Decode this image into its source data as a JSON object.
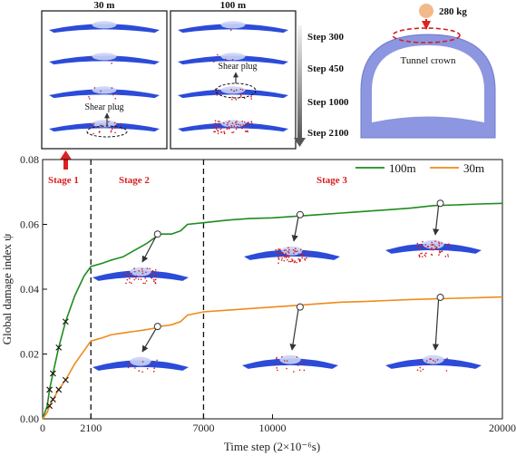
{
  "top_figure": {
    "panel_titles": [
      "30 m",
      "100 m"
    ],
    "steps": [
      "Step 300",
      "Step 450",
      "Step 1000",
      "Step 2100"
    ],
    "shear_plug_label": "Shear plug",
    "mass_label": "280 kg",
    "tunnel_label": "Tunnel crown"
  },
  "chart_data": {
    "type": "line",
    "xlabel": "Time step (2×10⁻⁶s)",
    "ylabel": "Global damage index ψ",
    "xlim": [
      0,
      20000
    ],
    "ylim": [
      0,
      0.08
    ],
    "xticks": [
      0,
      2100,
      7000,
      10000,
      20000
    ],
    "xtick_labels": [
      "0",
      "2100",
      "7000",
      "10000",
      "20000"
    ],
    "yticks": [
      0.0,
      0.02,
      0.04,
      0.06,
      0.08
    ],
    "ytick_labels": [
      "0.00",
      "0.02",
      "0.04",
      "0.06",
      "0.08"
    ],
    "stage_boundaries": [
      2100,
      7000
    ],
    "stages": [
      "Stage 1",
      "Stage 2",
      "Stage 3"
    ],
    "legend_position": "top-right",
    "series": [
      {
        "name": "100m",
        "color": "#1e8c1e",
        "x": [
          0,
          200,
          300,
          450,
          700,
          1000,
          1400,
          1800,
          2100,
          2600,
          3000,
          3500,
          4000,
          4500,
          4900,
          5100,
          5600,
          6000,
          6300,
          7000,
          8000,
          9000,
          10000,
          11000,
          12000,
          13000,
          14000,
          15000,
          16000,
          17000,
          18000,
          19000,
          20000
        ],
        "y": [
          0.0,
          0.004,
          0.009,
          0.014,
          0.022,
          0.03,
          0.038,
          0.044,
          0.047,
          0.048,
          0.049,
          0.05,
          0.052,
          0.054,
          0.056,
          0.057,
          0.057,
          0.058,
          0.06,
          0.0605,
          0.0613,
          0.0618,
          0.062,
          0.0625,
          0.063,
          0.0635,
          0.064,
          0.0645,
          0.065,
          0.0658,
          0.066,
          0.0663,
          0.0665
        ],
        "markers_x": [
          300,
          450,
          700,
          1000
        ]
      },
      {
        "name": "30m",
        "color": "#f08a1c",
        "x": [
          0,
          200,
          300,
          450,
          700,
          1000,
          1400,
          1800,
          2100,
          2600,
          3000,
          3500,
          4000,
          4500,
          4900,
          5100,
          5600,
          6000,
          6300,
          7000,
          8000,
          9000,
          10000,
          11000,
          12000,
          13000,
          14000,
          15000,
          16000,
          17000,
          18000,
          19000,
          20000
        ],
        "y": [
          0.0,
          0.002,
          0.004,
          0.006,
          0.009,
          0.012,
          0.017,
          0.021,
          0.024,
          0.025,
          0.026,
          0.0265,
          0.027,
          0.0275,
          0.028,
          0.0285,
          0.029,
          0.03,
          0.032,
          0.033,
          0.0335,
          0.034,
          0.0345,
          0.035,
          0.0355,
          0.036,
          0.0362,
          0.0365,
          0.0368,
          0.037,
          0.0372,
          0.0374,
          0.0376
        ],
        "markers_x": [
          300,
          450,
          700,
          1000
        ]
      }
    ],
    "callouts": [
      {
        "series": "100m",
        "x": 5000,
        "y": 0.057
      },
      {
        "series": "100m",
        "x": 11200,
        "y": 0.063
      },
      {
        "series": "100m",
        "x": 17300,
        "y": 0.0665
      },
      {
        "series": "30m",
        "x": 5000,
        "y": 0.0285
      },
      {
        "series": "30m",
        "x": 11200,
        "y": 0.0345
      },
      {
        "series": "30m",
        "x": 17300,
        "y": 0.0375
      }
    ]
  },
  "colors": {
    "tunnel_blue": "#2b4bd8",
    "damage_red": "#d11a1a",
    "stage_red": "#d62020",
    "lining_light": "#8d96e0"
  }
}
